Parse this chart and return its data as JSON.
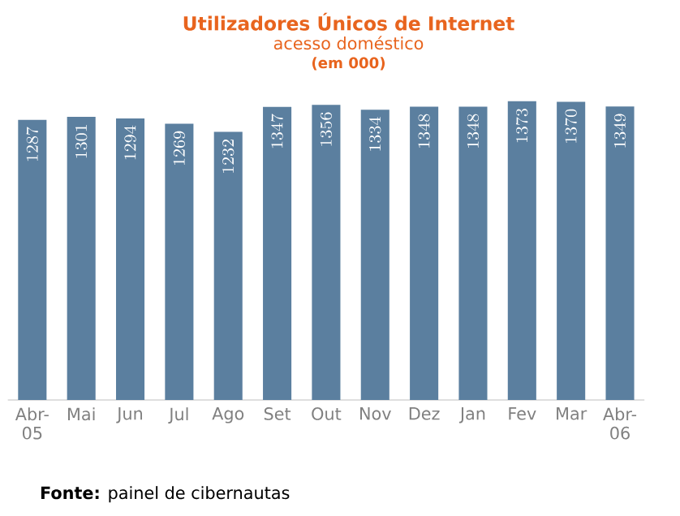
{
  "chart_data": {
    "type": "bar",
    "title": "Utilizadores Únicos de Internet",
    "subtitle": "acesso doméstico",
    "annotations": [
      "(em 000)",
      "**Fonte:** painel de cibernautas"
    ],
    "categories": [
      "Abr-05",
      "Mai",
      "Jun",
      "Jul",
      "Ago",
      "Set",
      "Out",
      "Nov",
      "Dez",
      "Jan",
      "Fev",
      "Mar",
      "Abr-06"
    ],
    "values": [
      1287,
      1301,
      1294,
      1269,
      1232,
      1347,
      1356,
      1334,
      1348,
      1348,
      1373,
      1370,
      1349
    ],
    "color": "#5b7f9f",
    "data_labels": true
  }
}
